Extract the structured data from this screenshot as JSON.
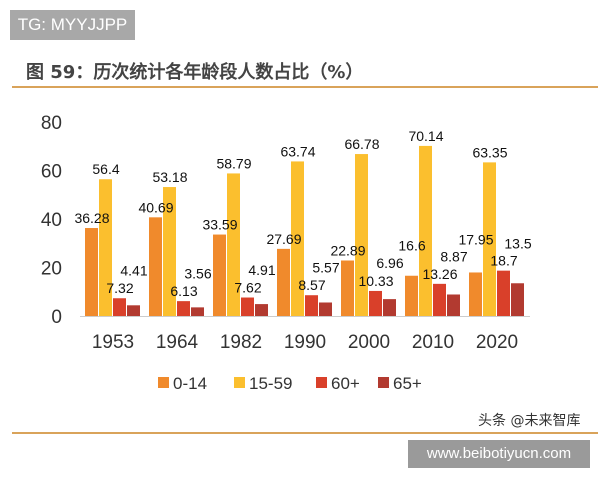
{
  "badge": "TG: MYYJJPP",
  "watermark": "头条 @未来智库",
  "url_badge": "www.beibotiyucn.com",
  "chart_data": {
    "type": "bar",
    "title": "图 59：历次统计各年龄段人数占比（%）",
    "categories": [
      "1953",
      "1964",
      "1982",
      "1990",
      "2000",
      "2010",
      "2020"
    ],
    "series": [
      {
        "name": "0-14",
        "color": "#F08A2C",
        "values": [
          36.28,
          40.69,
          33.59,
          27.69,
          22.89,
          16.6,
          17.95
        ]
      },
      {
        "name": "15-59",
        "color": "#FBBF2E",
        "values": [
          56.4,
          53.18,
          58.79,
          63.74,
          66.78,
          70.14,
          63.35
        ]
      },
      {
        "name": "60+",
        "color": "#D9402A",
        "values": [
          7.32,
          6.13,
          7.62,
          8.57,
          10.33,
          13.26,
          18.7
        ]
      },
      {
        "name": "65+",
        "color": "#B23A30",
        "values": [
          4.41,
          3.56,
          4.91,
          5.57,
          6.96,
          8.87,
          13.5
        ]
      }
    ],
    "ylim": [
      0,
      80
    ],
    "yticks": [
      0,
      20,
      40,
      60,
      80
    ],
    "grid": false,
    "legend": "bottom"
  }
}
